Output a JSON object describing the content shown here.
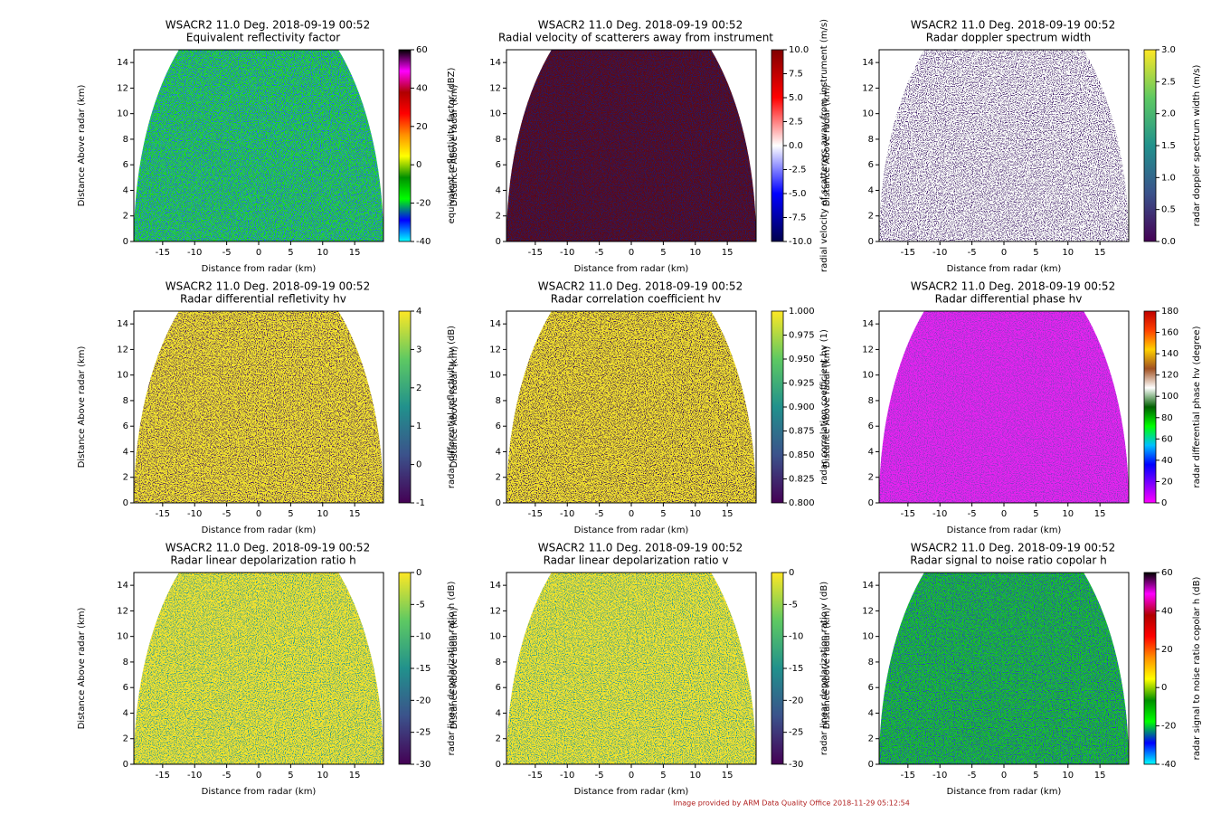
{
  "footer": "Image provided by ARM Data Quality Office 2018-11-29 05:12:54",
  "chart_data": [
    {
      "type": "radar",
      "title": "WSACR2 11.0 Deg. 2018-09-19 00:52",
      "subtitle": "Equivalent reflectivity factor",
      "x_label": "Distance from radar (km)",
      "y_label": "Distance Above radar  (km)",
      "colorbar_label": "equivalent reflectivity factor (dBZ)",
      "xlim": [
        -19.5,
        19.5
      ],
      "xticks": [
        -15,
        -10,
        -5,
        0,
        5,
        10,
        15
      ],
      "ylim": [
        0,
        15
      ],
      "yticks": [
        0,
        2,
        4,
        6,
        8,
        10,
        12,
        14
      ],
      "clim": [
        -40,
        60
      ],
      "cticks": [
        -40,
        -20,
        0,
        20,
        40,
        60
      ],
      "colormap": [
        "#00ffff",
        "#0000ff",
        "#00ff00",
        "#009000",
        "#ffff00",
        "#ff9000",
        "#ff0000",
        "#b00000",
        "#ff00ff",
        "#000000"
      ],
      "image_colors": [
        "#22d41c",
        "#2a55ff"
      ]
    },
    {
      "type": "radar",
      "title": "WSACR2 11.0 Deg. 2018-09-19 00:52",
      "subtitle": "Radial velocity of scatterers away from instrument",
      "x_label": "Distance from radar (km)",
      "y_label": "Distance Above radar  (km)",
      "colorbar_label": "radial velocity of scatterers away from instrument (m/s)",
      "xlim": [
        -19.5,
        19.5
      ],
      "xticks": [
        -15,
        -10,
        -5,
        0,
        5,
        10,
        15
      ],
      "ylim": [
        0,
        15
      ],
      "yticks": [
        0,
        2,
        4,
        6,
        8,
        10,
        12,
        14
      ],
      "clim": [
        -10,
        10
      ],
      "cticks": [
        {
          "value": -10,
          "label": "-10.0"
        },
        -7.5,
        {
          "value": -5,
          "label": "-5.0"
        },
        -2.5,
        {
          "value": 0,
          "label": "0.0"
        },
        2.5,
        {
          "value": 5,
          "label": "5.0"
        },
        7.5,
        {
          "value": 10,
          "label": "10.0"
        }
      ],
      "colormap": [
        "#00004c",
        "#0000ff",
        "#ffffff",
        "#ff0000",
        "#800000"
      ],
      "image_colors": [
        "#5a0a12",
        "#1a1a6a"
      ]
    },
    {
      "type": "radar",
      "title": "WSACR2 11.0 Deg. 2018-09-19 00:52",
      "subtitle": "Radar doppler spectrum width",
      "x_label": "Distance from radar (km)",
      "y_label": "Distance Above radar  (km)",
      "colorbar_label": "radar doppler spectrum width (m/s)",
      "xlim": [
        -19.5,
        19.5
      ],
      "xticks": [
        -15,
        -10,
        -5,
        0,
        5,
        10,
        15
      ],
      "ylim": [
        0,
        15
      ],
      "yticks": [
        0,
        2,
        4,
        6,
        8,
        10,
        12,
        14
      ],
      "clim": [
        0,
        3
      ],
      "cticks": [
        {
          "value": 0,
          "label": "0.0"
        },
        0.5,
        {
          "value": 1,
          "label": "1.0"
        },
        1.5,
        {
          "value": 2,
          "label": "2.0"
        },
        2.5,
        {
          "value": 3,
          "label": "3.0"
        }
      ],
      "colormap": [
        "#440154",
        "#3b528b",
        "#21918c",
        "#5ec962",
        "#fde725"
      ],
      "image_colors": [
        "#ffffff",
        "#47246f"
      ]
    },
    {
      "type": "radar",
      "title": "WSACR2 11.0 Deg. 2018-09-19 00:52",
      "subtitle": "Radar differential refletivity hv",
      "x_label": "Distance from radar (km)",
      "y_label": "Distance Above radar  (km)",
      "colorbar_label": "radar differential reflectivity hv (dB)",
      "xlim": [
        -19.5,
        19.5
      ],
      "xticks": [
        -15,
        -10,
        -5,
        0,
        5,
        10,
        15
      ],
      "ylim": [
        0,
        15
      ],
      "yticks": [
        0,
        2,
        4,
        6,
        8,
        10,
        12,
        14
      ],
      "clim": [
        -1,
        4
      ],
      "cticks": [
        -1,
        0,
        1,
        2,
        3,
        4
      ],
      "colormap": [
        "#440154",
        "#3b528b",
        "#21918c",
        "#5ec962",
        "#fde725"
      ],
      "image_colors": [
        "#f5e62a",
        "#4a1a5a"
      ]
    },
    {
      "type": "radar",
      "title": "WSACR2 11.0 Deg. 2018-09-19 00:52",
      "subtitle": "Radar correlation coefficient hv",
      "x_label": "Distance from radar (km)",
      "y_label": "Distance Above radar  (km)",
      "colorbar_label": "radar correlation coefficient hv (1)",
      "xlim": [
        -19.5,
        19.5
      ],
      "xticks": [
        -15,
        -10,
        -5,
        0,
        5,
        10,
        15
      ],
      "ylim": [
        0,
        15
      ],
      "yticks": [
        0,
        2,
        4,
        6,
        8,
        10,
        12,
        14
      ],
      "clim": [
        0.8,
        1
      ],
      "cticks": [
        {
          "value": 0.8,
          "label": "0.800"
        },
        {
          "value": 0.825,
          "label": "0.825"
        },
        {
          "value": 0.85,
          "label": "0.850"
        },
        {
          "value": 0.875,
          "label": "0.875"
        },
        {
          "value": 0.9,
          "label": "0.900"
        },
        {
          "value": 0.925,
          "label": "0.925"
        },
        {
          "value": 0.95,
          "label": "0.950"
        },
        {
          "value": 0.975,
          "label": "0.975"
        },
        {
          "value": 1,
          "label": "1.000"
        }
      ],
      "colormap": [
        "#440154",
        "#3b528b",
        "#21918c",
        "#5ec962",
        "#fde725"
      ],
      "image_colors": [
        "#f7e52a",
        "#3a1450"
      ]
    },
    {
      "type": "radar",
      "title": "WSACR2 11.0 Deg. 2018-09-19 00:52",
      "subtitle": "Radar differential phase hv",
      "x_label": "Distance from radar (km)",
      "y_label": "Distance Above radar  (km)",
      "colorbar_label": "radar differential phase hv (degree)",
      "xlim": [
        -19.5,
        19.5
      ],
      "xticks": [
        -15,
        -10,
        -5,
        0,
        5,
        10,
        15
      ],
      "ylim": [
        0,
        15
      ],
      "yticks": [
        0,
        2,
        4,
        6,
        8,
        10,
        12,
        14
      ],
      "clim": [
        0,
        180
      ],
      "cticks": [
        0,
        20,
        40,
        60,
        80,
        100,
        120,
        140,
        160,
        180
      ],
      "colormap": [
        "#ff00ff",
        "#8000ff",
        "#0000ff",
        "#00c0ff",
        "#00ff00",
        "#006000",
        "#ffffff",
        "#a05020",
        "#ffd000",
        "#ff4000",
        "#c00000"
      ],
      "image_colors": [
        "#e822f0",
        "#8a3ac8"
      ]
    },
    {
      "type": "radar",
      "title": "WSACR2 11.0 Deg. 2018-09-19 00:52",
      "subtitle": "Radar linear depolarization ratio h",
      "x_label": "Distance from radar (km)",
      "y_label": "Distance Above radar  (km)",
      "colorbar_label": "radar linear depolarization ratio h (dB)",
      "xlim": [
        -19.5,
        19.5
      ],
      "xticks": [
        -15,
        -10,
        -5,
        0,
        5,
        10,
        15
      ],
      "ylim": [
        0,
        15
      ],
      "yticks": [
        0,
        2,
        4,
        6,
        8,
        10,
        12,
        14
      ],
      "clim": [
        -30,
        0
      ],
      "cticks": [
        -30,
        -25,
        -20,
        -15,
        -10,
        -5,
        0
      ],
      "colormap": [
        "#440154",
        "#3b528b",
        "#21918c",
        "#5ec962",
        "#fde725"
      ],
      "image_colors": [
        "#f8e621",
        "#2a9a8a"
      ]
    },
    {
      "type": "radar",
      "title": "WSACR2 11.0 Deg. 2018-09-19 00:52",
      "subtitle": "Radar linear depolarization ratio v",
      "x_label": "Distance from radar (km)",
      "y_label": "Distance Above radar  (km)",
      "colorbar_label": "radar linear depolarization ratio v (dB)",
      "xlim": [
        -19.5,
        19.5
      ],
      "xticks": [
        -15,
        -10,
        -5,
        0,
        5,
        10,
        15
      ],
      "ylim": [
        0,
        15
      ],
      "yticks": [
        0,
        2,
        4,
        6,
        8,
        10,
        12,
        14
      ],
      "clim": [
        -30,
        0
      ],
      "cticks": [
        -30,
        -25,
        -20,
        -15,
        -10,
        -5,
        0
      ],
      "colormap": [
        "#440154",
        "#3b528b",
        "#21918c",
        "#5ec962",
        "#fde725"
      ],
      "image_colors": [
        "#f8e621",
        "#2a9a8a"
      ]
    },
    {
      "type": "radar",
      "title": "WSACR2 11.0 Deg. 2018-09-19 00:52",
      "subtitle": "Radar signal to noise ratio copolar h",
      "x_label": "Distance from radar (km)",
      "y_label": "Distance Above radar  (km)",
      "colorbar_label": "radar signal to noise ratio copolar h (dB)",
      "xlim": [
        -19.5,
        19.5
      ],
      "xticks": [
        -15,
        -10,
        -5,
        0,
        5,
        10,
        15
      ],
      "ylim": [
        0,
        15
      ],
      "yticks": [
        0,
        2,
        4,
        6,
        8,
        10,
        12,
        14
      ],
      "clim": [
        -40,
        60
      ],
      "cticks": [
        -40,
        -20,
        0,
        20,
        40,
        60
      ],
      "colormap": [
        "#00ffff",
        "#0000ff",
        "#00ff00",
        "#009000",
        "#ffff00",
        "#ff9000",
        "#ff0000",
        "#b00000",
        "#ff00ff",
        "#000000"
      ],
      "image_colors": [
        "#12c416",
        "#2a40c0"
      ]
    }
  ]
}
